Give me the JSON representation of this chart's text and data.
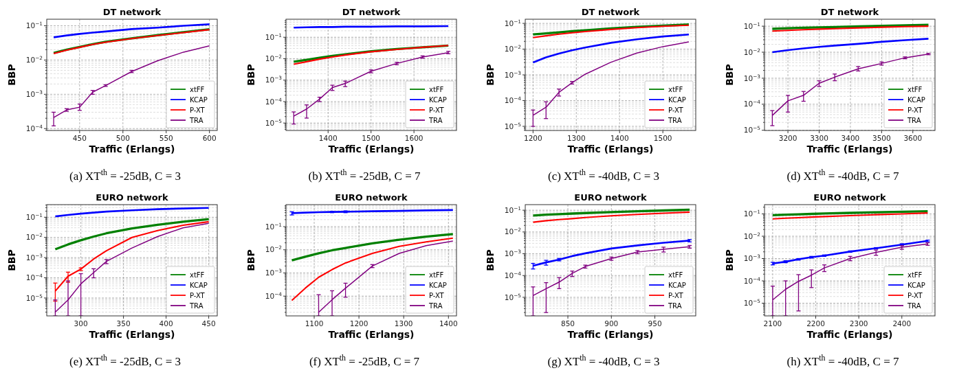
{
  "chart_data": [
    {
      "type": "line",
      "title": "DT network",
      "xlabel": "Traffic (Erlangs)",
      "ylabel": "BBP",
      "log": "y",
      "grid": true,
      "legend": "bottom right",
      "xlim": [
        412,
        609
      ],
      "xticks": [
        450,
        500,
        550,
        600
      ],
      "ylim": [
        8.8e-05,
        0.155
      ],
      "yticks": [
        {
          "value": 0.0001,
          "label": "10$^{−4}$"
        },
        {
          "value": 0.001,
          "label": "10$^{−3}$"
        },
        {
          "value": 0.01,
          "label": "10$^{−2}$"
        },
        {
          "value": 0.1,
          "label": "10$^{−1}$"
        }
      ],
      "x": [
        420,
        435,
        450,
        465,
        480,
        510,
        540,
        570,
        600
      ],
      "series": [
        {
          "name": "xtFF",
          "color": "#008000",
          "values": [
            0.016,
            0.02,
            0.024,
            0.029,
            0.034,
            0.043,
            0.053,
            0.065,
            0.079
          ]
        },
        {
          "name": "KCAP",
          "color": "#0000ff",
          "values": [
            0.046,
            0.052,
            0.058,
            0.063,
            0.068,
            0.08,
            0.088,
            0.1,
            0.11
          ]
        },
        {
          "name": "P-XT",
          "color": "#ff0000",
          "values": [
            0.0155,
            0.0195,
            0.0235,
            0.0285,
            0.033,
            0.042,
            0.052,
            0.063,
            0.077
          ]
        },
        {
          "name": "TRA",
          "color": "#800080",
          "values": [
            0.00021,
            0.00035,
            0.00042,
            0.00115,
            0.0018,
            0.0046,
            0.0095,
            0.017,
            0.026
          ],
          "errors": [
            [
              0.00012,
              0.0003
            ],
            [
              0.00032,
              0.00038
            ],
            [
              0.00034,
              0.00052
            ],
            [
              0.001,
              0.0013
            ],
            [
              0.0017,
              0.0019
            ],
            [
              0.0043,
              0.005
            ],
            null,
            null,
            null
          ]
        }
      ],
      "annotations": [
        "(a) XT$^{th}$ = -25dB, C = 3"
      ]
    },
    {
      "type": "line",
      "title": "DT network",
      "xlabel": "Traffic (Erlangs)",
      "ylabel": "BBP",
      "log": "y",
      "grid": true,
      "legend": "bottom right",
      "xlim": [
        1302,
        1699
      ],
      "xticks": [
        1400,
        1500,
        1600
      ],
      "ylim": [
        4.5e-06,
        0.69
      ],
      "yticks": [
        {
          "value": 1e-05,
          "label": "10$^{−5}$"
        },
        {
          "value": 0.0001,
          "label": "10$^{−4}$"
        },
        {
          "value": 0.001,
          "label": "10$^{−3}$"
        },
        {
          "value": 0.01,
          "label": "10$^{−2}$"
        },
        {
          "value": 0.1,
          "label": "10$^{−1}$"
        }
      ],
      "x": [
        1320,
        1350,
        1380,
        1410,
        1440,
        1500,
        1560,
        1620,
        1680
      ],
      "series": [
        {
          "name": "xtFF",
          "color": "#008000",
          "values": [
            0.0072,
            0.0088,
            0.011,
            0.0135,
            0.016,
            0.022,
            0.028,
            0.034,
            0.041
          ]
        },
        {
          "name": "KCAP",
          "color": "#0000ff",
          "values": [
            0.28,
            0.29,
            0.3,
            0.3,
            0.31,
            0.31,
            0.32,
            0.32,
            0.33
          ]
        },
        {
          "name": "P-XT",
          "color": "#ff0000",
          "values": [
            0.0055,
            0.0072,
            0.0095,
            0.012,
            0.0148,
            0.021,
            0.027,
            0.034,
            0.041
          ]
        },
        {
          "name": "TRA",
          "color": "#800080",
          "values": [
            2.1e-05,
            4.5e-05,
            0.00013,
            0.00045,
            0.0007,
            0.0026,
            0.006,
            0.012,
            0.019
          ],
          "errors": [
            [
              9e-06,
              3.3e-05
            ],
            [
              1.7e-05,
              7e-05
            ],
            [
              0.0001,
              0.00016
            ],
            [
              0.00033,
              0.00058
            ],
            [
              0.0005,
              0.0009
            ],
            [
              0.0022,
              0.003
            ],
            [
              0.0052,
              0.0068
            ],
            [
              0.0105,
              0.0135
            ],
            [
              0.017,
              0.022
            ]
          ]
        }
      ],
      "annotations": [
        "(b) XT$^{th}$ = -25dB, C = 7"
      ]
    },
    {
      "type": "line",
      "title": "DT network",
      "xlabel": "Traffic (Erlangs)",
      "ylabel": "BBP",
      "log": "y",
      "grid": true,
      "legend": "bottom right",
      "xlim": [
        1182,
        1576
      ],
      "xticks": [
        1200,
        1300,
        1400,
        1500
      ],
      "ylim": [
        6.9e-06,
        0.145
      ],
      "yticks": [
        {
          "value": 1e-05,
          "label": "10$^{−5}$"
        },
        {
          "value": 0.0001,
          "label": "10$^{−4}$"
        },
        {
          "value": 0.001,
          "label": "10$^{−3}$"
        },
        {
          "value": 0.01,
          "label": "10$^{−2}$"
        },
        {
          "value": 0.1,
          "label": "10$^{−1}$"
        }
      ],
      "x": [
        1200,
        1230,
        1260,
        1290,
        1320,
        1380,
        1440,
        1500,
        1560
      ],
      "series": [
        {
          "name": "xtFF",
          "color": "#008000",
          "values": [
            0.037,
            0.041,
            0.045,
            0.05,
            0.054,
            0.064,
            0.073,
            0.082,
            0.09
          ]
        },
        {
          "name": "KCAP",
          "color": "#0000ff",
          "values": [
            0.003,
            0.0048,
            0.0067,
            0.009,
            0.0115,
            0.0175,
            0.024,
            0.031,
            0.037
          ]
        },
        {
          "name": "P-XT",
          "color": "#ff0000",
          "values": [
            0.028,
            0.033,
            0.038,
            0.043,
            0.048,
            0.058,
            0.068,
            0.077,
            0.085
          ]
        },
        {
          "name": "TRA",
          "color": "#800080",
          "values": [
            2.7e-05,
            5.5e-05,
            0.00021,
            0.00049,
            0.00105,
            0.0031,
            0.007,
            0.0125,
            0.019
          ],
          "errors": [
            [
              1e-05,
              4.3e-05
            ],
            [
              2e-05,
              9e-05
            ],
            [
              0.00015,
              0.00028
            ],
            [
              0.00044,
              0.00055
            ],
            null,
            null,
            null,
            null,
            null
          ]
        }
      ],
      "annotations": [
        "(c) XT$^{th}$ = -40dB, C = 3"
      ]
    },
    {
      "type": "line",
      "title": "DT network",
      "xlabel": "Traffic (Erlangs)",
      "ylabel": "BBP",
      "log": "y",
      "grid": true,
      "legend": "bottom right",
      "xlim": [
        3125,
        3671
      ],
      "xticks": [
        3200,
        3300,
        3400,
        3500,
        3600
      ],
      "ylim": [
        9.8e-06,
        0.185
      ],
      "yticks": [
        {
          "value": 1e-05,
          "label": "10$^{−5}$"
        },
        {
          "value": 0.0001,
          "label": "10$^{−4}$"
        },
        {
          "value": 0.001,
          "label": "10$^{−3}$"
        },
        {
          "value": 0.01,
          "label": "10$^{−2}$"
        },
        {
          "value": 0.1,
          "label": "10$^{−1}$"
        }
      ],
      "x": [
        3150,
        3200,
        3250,
        3300,
        3350,
        3425,
        3500,
        3575,
        3650
      ],
      "series": [
        {
          "name": "xtFF",
          "color": "#008000",
          "values": [
            0.079,
            0.083,
            0.087,
            0.09,
            0.093,
            0.098,
            0.103,
            0.108,
            0.113
          ]
        },
        {
          "name": "KCAP",
          "color": "#0000ff",
          "values": [
            0.01,
            0.012,
            0.014,
            0.016,
            0.018,
            0.021,
            0.025,
            0.029,
            0.033
          ]
        },
        {
          "name": "P-XT",
          "color": "#ff0000",
          "values": [
            0.065,
            0.069,
            0.073,
            0.077,
            0.08,
            0.086,
            0.091,
            0.096,
            0.1
          ]
        },
        {
          "name": "TRA",
          "color": "#800080",
          "values": [
            3.7e-05,
            0.000135,
            0.00022,
            0.00064,
            0.0011,
            0.0023,
            0.0037,
            0.0061,
            0.0085
          ],
          "errors": [
            [
              1.5e-05,
              5.7e-05
            ],
            [
              5e-05,
              0.00022
            ],
            [
              0.00013,
              0.00031
            ],
            [
              0.00048,
              0.0008
            ],
            [
              0.0008,
              0.00145
            ],
            [
              0.0019,
              0.0028
            ],
            [
              0.0032,
              0.0042
            ],
            [
              0.0056,
              0.0066
            ],
            [
              0.008,
              0.009
            ]
          ]
        }
      ],
      "annotations": [
        "(d) XT$^{th}$ = -40dB, C = 7"
      ]
    },
    {
      "type": "line",
      "title": "EURO network",
      "xlabel": "Traffic (Erlangs)",
      "ylabel": "BBP",
      "log": "y",
      "grid": true,
      "legend": "bottom right",
      "xlim": [
        260,
        460
      ],
      "xticks": [
        300,
        350,
        400,
        450
      ],
      "ylim": [
        1.3e-06,
        0.42
      ],
      "yticks": [
        {
          "value": 1e-05,
          "label": "10$^{−5}$"
        },
        {
          "value": 0.0001,
          "label": "10$^{−4}$"
        },
        {
          "value": 0.001,
          "label": "10$^{−3}$"
        },
        {
          "value": 0.01,
          "label": "10$^{−2}$"
        },
        {
          "value": 0.1,
          "label": "10$^{−1}$"
        }
      ],
      "x": [
        270,
        285,
        300,
        315,
        330,
        360,
        390,
        420,
        450
      ],
      "series": [
        {
          "name": "xtFF",
          "color": "#008000",
          "values": [
            0.0026,
            0.0045,
            0.0072,
            0.011,
            0.016,
            0.028,
            0.042,
            0.06,
            0.08
          ]
        },
        {
          "name": "KCAP",
          "color": "#0000ff",
          "values": [
            0.11,
            0.13,
            0.15,
            0.17,
            0.19,
            0.22,
            0.25,
            0.27,
            0.29
          ]
        },
        {
          "name": "P-XT",
          "color": "#ff0000",
          "values": [
            2.2e-05,
            0.00012,
            0.00027,
            0.00085,
            0.0022,
            0.01,
            0.022,
            0.04,
            0.06
          ],
          "errors": [
            [
              7e-06,
              5.5e-05
            ],
            [
              6e-05,
              0.00019
            ],
            [
              0.00023,
              0.00031
            ],
            null,
            null,
            null,
            null,
            null,
            null
          ]
        },
        {
          "name": "TRA",
          "color": "#800080",
          "values": [
            2e-06,
            8e-06,
            5e-05,
            0.00018,
            0.00065,
            0.003,
            0.011,
            0.03,
            0.05
          ],
          "errors": [
            [
              1.3e-06,
              8e-06
            ],
            [
              1.3e-06,
              7e-05
            ],
            [
              1.3e-06,
              0.00016
            ],
            [
              0.0001,
              0.00028
            ],
            [
              0.0005,
              0.0008
            ],
            null,
            null,
            null,
            null
          ]
        }
      ],
      "annotations": [
        "(e) XT$^{th}$ = -25dB, C = 3"
      ]
    },
    {
      "type": "line",
      "title": "EURO network",
      "xlabel": "Traffic (Erlangs)",
      "ylabel": "BBP",
      "log": "y",
      "grid": true,
      "legend": "bottom right",
      "xlim": [
        1037,
        1418
      ],
      "xticks": [
        1100,
        1200,
        1300,
        1400
      ],
      "ylim": [
        1.4e-05,
        0.89
      ],
      "yticks": [
        {
          "value": 0.0001,
          "label": "10$^{−4}$"
        },
        {
          "value": 0.001,
          "label": "10$^{−3}$"
        },
        {
          "value": 0.01,
          "label": "10$^{−2}$"
        },
        {
          "value": 0.1,
          "label": "10$^{−1}$"
        }
      ],
      "x": [
        1050,
        1080,
        1110,
        1140,
        1170,
        1230,
        1290,
        1350,
        1410
      ],
      "series": [
        {
          "name": "xtFF",
          "color": "#008000",
          "values": [
            0.0035,
            0.005,
            0.007,
            0.0095,
            0.012,
            0.019,
            0.027,
            0.037,
            0.048
          ]
        },
        {
          "name": "KCAP",
          "color": "#0000ff",
          "values": [
            0.38,
            0.4,
            0.42,
            0.43,
            0.44,
            0.46,
            0.48,
            0.5,
            0.52
          ],
          "errors": [
            [
              0.32,
              0.44
            ],
            null,
            null,
            [
              0.4,
              0.46
            ],
            [
              0.4,
              0.48
            ],
            null,
            null,
            null,
            null
          ]
        },
        {
          "name": "P-XT",
          "color": "#ff0000",
          "values": [
            6.5e-05,
            0.00022,
            0.00065,
            0.0014,
            0.0027,
            0.007,
            0.014,
            0.022,
            0.032
          ]
        },
        {
          "name": "TRA",
          "color": "#800080",
          "values": [
            null,
            null,
            2e-05,
            7e-05,
            0.00022,
            0.002,
            0.007,
            0.015,
            0.024
          ],
          "errors": [
            null,
            null,
            [
              1.4e-05,
              0.000115
            ],
            [
              1.4e-05,
              0.00017
            ],
            [
              9e-05,
              0.00036
            ],
            [
              0.0017,
              0.0023
            ],
            null,
            null,
            null
          ]
        }
      ],
      "annotations": [
        "(f) XT$^{th}$ = -25dB, C = 7"
      ]
    },
    {
      "type": "line",
      "title": "EURO network",
      "xlabel": "Traffic (Erlangs)",
      "ylabel": "BBP",
      "log": "y",
      "grid": true,
      "legend": "bottom right",
      "xlim": [
        801,
        997
      ],
      "xticks": [
        850,
        900,
        950
      ],
      "ylim": [
        1.4e-06,
        0.18
      ],
      "yticks": [
        {
          "value": 1e-05,
          "label": "10$^{−5}$"
        },
        {
          "value": 0.0001,
          "label": "10$^{−4}$"
        },
        {
          "value": 0.001,
          "label": "10$^{−3}$"
        },
        {
          "value": 0.01,
          "label": "10$^{−2}$"
        },
        {
          "value": 0.1,
          "label": "10$^{−1}$"
        }
      ],
      "x": [
        810,
        825,
        840,
        855,
        870,
        900,
        930,
        960,
        990
      ],
      "series": [
        {
          "name": "xtFF",
          "color": "#008000",
          "values": [
            0.057,
            0.062,
            0.066,
            0.07,
            0.074,
            0.082,
            0.09,
            0.097,
            0.105
          ]
        },
        {
          "name": "KCAP",
          "color": "#0000ff",
          "values": [
            0.00028,
            0.0004,
            0.00054,
            0.00078,
            0.00105,
            0.00175,
            0.0024,
            0.0032,
            0.004
          ],
          "errors": [
            [
              0.0002,
              0.00036
            ],
            [
              0.0003,
              0.0005
            ],
            [
              0.00047,
              0.00061
            ],
            null,
            null,
            null,
            null,
            null,
            [
              0.0035,
              0.0045
            ]
          ]
        },
        {
          "name": "P-XT",
          "color": "#ff0000",
          "values": [
            0.028,
            0.033,
            0.037,
            0.041,
            0.046,
            0.055,
            0.064,
            0.073,
            0.082
          ]
        },
        {
          "name": "TRA",
          "color": "#800080",
          "values": [
            1.2e-05,
            2.5e-05,
            5e-05,
            0.000125,
            0.00026,
            0.0006,
            0.0012,
            0.0016,
            0.0021
          ],
          "errors": [
            [
              1.4e-06,
              3e-05
            ],
            [
              2e-06,
              4.7e-05
            ],
            [
              2.5e-05,
              8e-05
            ],
            [
              9e-05,
              0.00016
            ],
            [
              0.00022,
              0.0003
            ],
            [
              0.0005,
              0.0007
            ],
            [
              0.001,
              0.0014
            ],
            [
              0.0012,
              0.002
            ],
            [
              0.0018,
              0.0024
            ]
          ]
        }
      ],
      "annotations": [
        "(g) XT$^{th}$ = -40dB, C = 3"
      ]
    },
    {
      "type": "line",
      "title": "EURO network",
      "xlabel": "Traffic (Erlangs)",
      "ylabel": "BBP",
      "log": "y",
      "grid": true,
      "legend": "bottom right",
      "xlim": [
        2081,
        2477
      ],
      "xticks": [
        2100,
        2200,
        2300,
        2400
      ],
      "ylim": [
        2.7e-06,
        0.26
      ],
      "yticks": [
        {
          "value": 1e-05,
          "label": "10$^{−5}$"
        },
        {
          "value": 0.0001,
          "label": "10$^{−4}$"
        },
        {
          "value": 0.001,
          "label": "10$^{−3}$"
        },
        {
          "value": 0.01,
          "label": "10$^{−2}$"
        },
        {
          "value": 0.1,
          "label": "10$^{−1}$"
        }
      ],
      "x": [
        2100,
        2130,
        2160,
        2190,
        2220,
        2280,
        2340,
        2400,
        2460
      ],
      "series": [
        {
          "name": "xtFF",
          "color": "#008000",
          "values": [
            0.088,
            0.092,
            0.096,
            0.1,
            0.104,
            0.111,
            0.118,
            0.125,
            0.132
          ]
        },
        {
          "name": "KCAP",
          "color": "#0000ff",
          "values": [
            0.0006,
            0.00072,
            0.00093,
            0.00115,
            0.00135,
            0.00205,
            0.0029,
            0.0042,
            0.0062
          ],
          "errors": [
            [
              0.00052,
              0.00068
            ],
            [
              0.00065,
              0.0008
            ],
            [
              0.00085,
              0.001
            ],
            [
              0.00105,
              0.00125
            ],
            [
              0.00125,
              0.00145
            ],
            [
              0.0019,
              0.0022
            ],
            [
              0.0027,
              0.0031
            ],
            [
              0.0038,
              0.0046
            ],
            [
              0.0057,
              0.0067
            ]
          ]
        },
        {
          "name": "P-XT",
          "color": "#ff0000",
          "values": [
            0.06,
            0.064,
            0.068,
            0.072,
            0.076,
            0.084,
            0.092,
            0.1,
            0.11
          ]
        },
        {
          "name": "TRA",
          "color": "#800080",
          "values": [
            1.4e-05,
            4.2e-05,
            9.5e-05,
            0.00018,
            0.00038,
            0.001,
            0.0019,
            0.0032,
            0.0045
          ],
          "errors": [
            [
              2.7e-06,
              5.8e-05
            ],
            [
              2.7e-06,
              0.0001
            ],
            [
              4.5e-06,
              0.00019
            ],
            [
              5e-05,
              0.00031
            ],
            [
              0.00026,
              0.00052
            ],
            [
              0.0008,
              0.00125
            ],
            [
              0.0014,
              0.0024
            ],
            [
              0.0026,
              0.0038
            ],
            [
              0.0039,
              0.0051
            ]
          ]
        }
      ],
      "annotations": [
        "(h) XT$^{th}$ = -40dB, C = 7"
      ]
    }
  ]
}
